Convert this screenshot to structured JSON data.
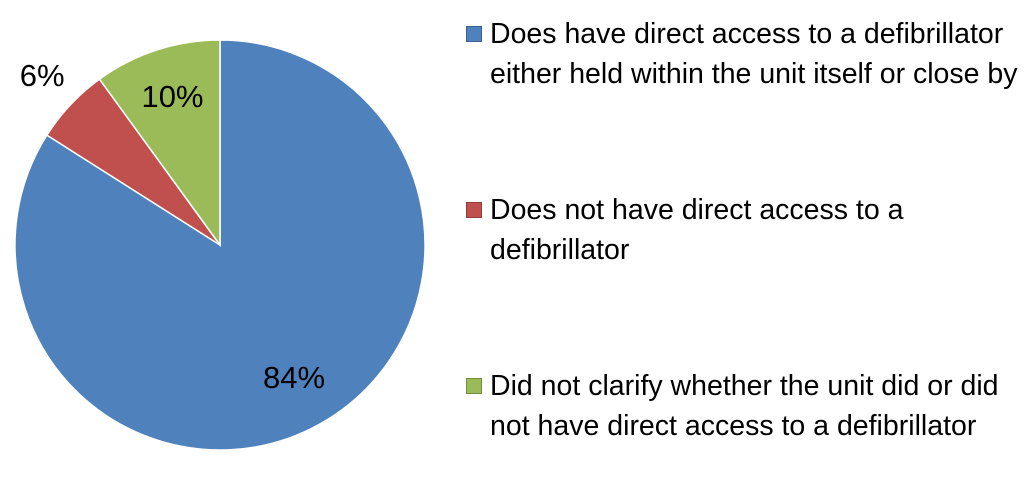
{
  "chart_data": {
    "type": "pie",
    "categories": [
      "Does have direct access to a defibrillator either held within the unit itself or close by",
      "Does not have direct access to a defibrillator",
      "Did not clarify whether the unit did or did not have direct access to a defibrillator"
    ],
    "values": [
      84,
      6,
      10
    ],
    "value_labels": [
      "84%",
      "6%",
      "10%"
    ],
    "colors": [
      "#4f81bd",
      "#c0504d",
      "#9bbb59"
    ],
    "legend": "right"
  }
}
